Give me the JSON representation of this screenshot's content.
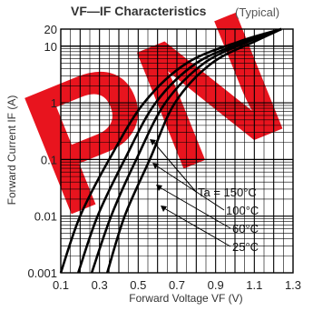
{
  "chart_data": {
    "type": "line",
    "title": "VF—IF  Characteristics",
    "subtitle": "(Typical)",
    "watermark": "PN",
    "xlabel": "Forward Voltage   VF (V)",
    "ylabel": "Forward Current   IF (A)",
    "x_scale": "linear",
    "y_scale": "log",
    "xlim": [
      0.1,
      1.3
    ],
    "ylim": [
      0.001,
      20
    ],
    "x_ticks": [
      "0.1",
      "0.3",
      "0.5",
      "0.7",
      "0.9",
      "1.1",
      "1.3"
    ],
    "y_ticks": [
      "20",
      "10",
      "1",
      "0.1",
      "0.01",
      "0.001"
    ],
    "grid": true,
    "series": [
      {
        "name": "Ta = 150°C",
        "points": [
          [
            0.1,
            0.001
          ],
          [
            0.2,
            0.01
          ],
          [
            0.35,
            0.1
          ],
          [
            0.53,
            1
          ],
          [
            0.75,
            5
          ],
          [
            1.02,
            12
          ],
          [
            1.24,
            20
          ]
        ]
      },
      {
        "name": "100°C",
        "points": [
          [
            0.19,
            0.001
          ],
          [
            0.29,
            0.01
          ],
          [
            0.43,
            0.1
          ],
          [
            0.59,
            1
          ],
          [
            0.8,
            5
          ],
          [
            1.05,
            12
          ],
          [
            1.24,
            20
          ]
        ]
      },
      {
        "name": "60°C",
        "points": [
          [
            0.26,
            0.001
          ],
          [
            0.36,
            0.01
          ],
          [
            0.49,
            0.1
          ],
          [
            0.64,
            1
          ],
          [
            0.84,
            5
          ],
          [
            1.07,
            12
          ],
          [
            1.24,
            20
          ]
        ]
      },
      {
        "name": "25°C",
        "points": [
          [
            0.34,
            0.001
          ],
          [
            0.43,
            0.01
          ],
          [
            0.56,
            0.1
          ],
          [
            0.69,
            1
          ],
          [
            0.88,
            5
          ],
          [
            1.1,
            12
          ],
          [
            1.24,
            20
          ]
        ]
      }
    ],
    "legend_labels": [
      "Ta = 150°C",
      "100°C",
      "60°C",
      "25°C"
    ],
    "colors": {
      "curve": "#000000",
      "grid": "#000000",
      "watermark": "#e8141e"
    }
  }
}
